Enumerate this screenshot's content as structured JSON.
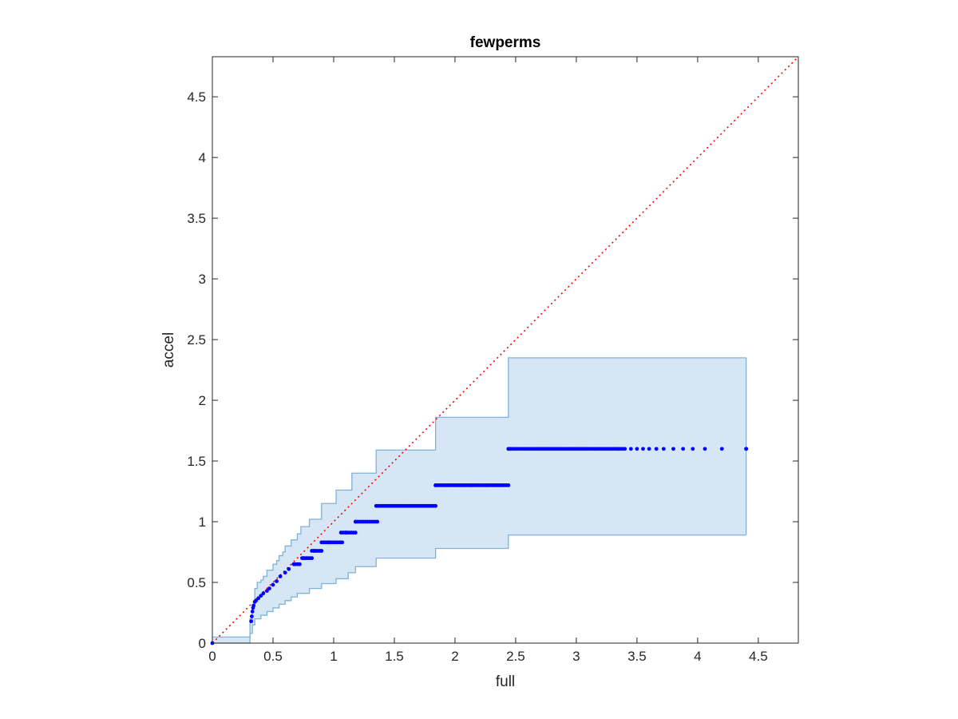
{
  "chart_data": {
    "type": "scatter",
    "title": "fewperms",
    "xlabel": "full",
    "ylabel": "accel",
    "xlim": [
      0,
      4.83
    ],
    "ylim": [
      0,
      4.83
    ],
    "xticks": [
      "0",
      "0.5",
      "1",
      "1.5",
      "2",
      "2.5",
      "3",
      "3.5",
      "4",
      "4.5"
    ],
    "yticks": [
      "0",
      "0.5",
      "1",
      "1.5",
      "2",
      "2.5",
      "3",
      "3.5",
      "4",
      "4.5"
    ],
    "grid": false,
    "reference_line": {
      "type": "identity",
      "style": "dotted",
      "color": "#ff0000"
    },
    "band": {
      "color": "#d6e6f4",
      "edge_color": "#7fb2d8",
      "upper": [
        [
          0,
          0.05
        ],
        [
          0.31,
          0.2
        ],
        [
          0.33,
          0.3
        ],
        [
          0.35,
          0.45
        ],
        [
          0.37,
          0.5
        ],
        [
          0.4,
          0.52
        ],
        [
          0.42,
          0.55
        ],
        [
          0.45,
          0.6
        ],
        [
          0.5,
          0.65
        ],
        [
          0.53,
          0.68
        ],
        [
          0.55,
          0.72
        ],
        [
          0.58,
          0.75
        ],
        [
          0.6,
          0.8
        ],
        [
          0.65,
          0.85
        ],
        [
          0.7,
          0.9
        ],
        [
          0.73,
          0.96
        ],
        [
          0.8,
          1.02
        ],
        [
          0.9,
          1.15
        ],
        [
          1.02,
          1.26
        ],
        [
          1.15,
          1.4
        ],
        [
          1.35,
          1.59
        ],
        [
          1.84,
          1.86
        ],
        [
          2.44,
          2.35
        ],
        [
          4.4,
          2.35
        ]
      ],
      "lower": [
        [
          0,
          0
        ],
        [
          0.31,
          0.08
        ],
        [
          0.33,
          0.15
        ],
        [
          0.35,
          0.2
        ],
        [
          0.4,
          0.23
        ],
        [
          0.45,
          0.26
        ],
        [
          0.5,
          0.29
        ],
        [
          0.55,
          0.32
        ],
        [
          0.6,
          0.35
        ],
        [
          0.65,
          0.38
        ],
        [
          0.7,
          0.41
        ],
        [
          0.8,
          0.45
        ],
        [
          0.9,
          0.49
        ],
        [
          1.02,
          0.53
        ],
        [
          1.12,
          0.58
        ],
        [
          1.18,
          0.63
        ],
        [
          1.35,
          0.7
        ],
        [
          1.84,
          0.78
        ],
        [
          2.44,
          0.89
        ],
        [
          4.4,
          0.89
        ]
      ]
    },
    "series": [
      {
        "marker_color": "#0000ff",
        "points": [
          [
            0,
            0
          ],
          [
            0.32,
            0.18
          ],
          [
            0.325,
            0.22
          ],
          [
            0.33,
            0.26
          ],
          [
            0.335,
            0.29
          ],
          [
            0.34,
            0.31
          ],
          [
            0.35,
            0.34
          ],
          [
            0.36,
            0.35
          ],
          [
            0.38,
            0.37
          ],
          [
            0.4,
            0.39
          ],
          [
            0.42,
            0.41
          ],
          [
            0.45,
            0.43
          ],
          [
            0.47,
            0.45
          ],
          [
            0.5,
            0.48
          ],
          [
            0.53,
            0.51
          ],
          [
            0.56,
            0.55
          ],
          [
            0.6,
            0.58
          ],
          [
            0.63,
            0.61
          ],
          [
            0.68,
            0.65
          ],
          [
            0.75,
            0.7
          ],
          [
            0.84,
            0.76
          ],
          [
            0.96,
            0.83
          ],
          [
            1.1,
            0.91
          ],
          [
            1.18,
            1.0
          ],
          [
            1.35,
            1.13
          ],
          [
            1.84,
            1.3
          ],
          [
            2.44,
            1.6
          ],
          [
            4.4,
            1.6
          ]
        ],
        "runs": [
          {
            "y": 0.65,
            "x0": 0.67,
            "x1": 0.72
          },
          {
            "y": 0.7,
            "x0": 0.74,
            "x1": 0.82
          },
          {
            "y": 0.76,
            "x0": 0.82,
            "x1": 0.9
          },
          {
            "y": 0.83,
            "x0": 0.9,
            "x1": 1.07
          },
          {
            "y": 0.91,
            "x0": 1.06,
            "x1": 1.18
          },
          {
            "y": 1.0,
            "x0": 1.18,
            "x1": 1.36
          },
          {
            "y": 1.13,
            "x0": 1.36,
            "x1": 1.84
          },
          {
            "y": 1.3,
            "x0": 1.84,
            "x1": 2.44
          },
          {
            "y": 1.6,
            "x0": 2.44,
            "x1": 3.4
          }
        ],
        "sparse": [
          {
            "y": 1.6,
            "xs": [
              3.45,
              3.5,
              3.55,
              3.6,
              3.66,
              3.72,
              3.8,
              3.88,
              3.96,
              4.06,
              4.2,
              4.4
            ]
          }
        ]
      }
    ]
  }
}
